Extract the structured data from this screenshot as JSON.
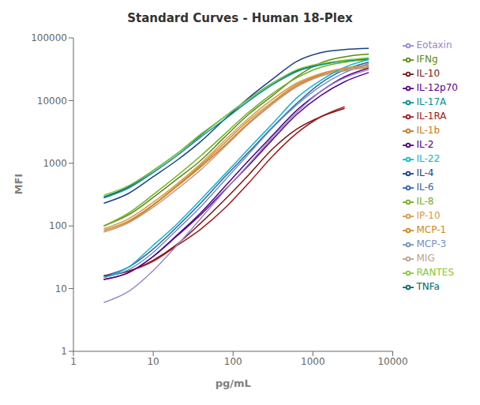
{
  "chart_data": {
    "type": "line",
    "title": "Standard Curves - Human 18-Plex",
    "x_label": "pg/mL",
    "y_label": "MFI",
    "log": true,
    "grid": false,
    "legend": "right",
    "xlim": [
      1,
      10000
    ],
    "ylim": [
      1,
      100000
    ],
    "xticks": [
      1,
      10,
      100,
      1000,
      10000
    ],
    "yticks": [
      1,
      10,
      100,
      1000,
      10000,
      100000
    ],
    "x": [
      2.4,
      4.9,
      9.8,
      19.5,
      39,
      78,
      156,
      313,
      625,
      1250,
      2500,
      5000
    ],
    "series": [
      {
        "name": "IL-4",
        "color": "#1f3f7f",
        "values": [
          230,
          330,
          600,
          1100,
          2200,
          5000,
          11000,
          22000,
          42000,
          58000,
          65000,
          68000
        ]
      },
      {
        "name": "IL-10",
        "color": "#7b1515",
        "values": [
          16,
          19,
          28,
          50,
          110,
          260,
          650,
          1700,
          3500,
          5500,
          7500,
          null
        ]
      },
      {
        "name": "IFNg",
        "color": "#5a8a10",
        "values": [
          100,
          150,
          280,
          550,
          1100,
          2600,
          6000,
          12000,
          24000,
          40000,
          50000,
          55000
        ]
      },
      {
        "name": "IL-2",
        "color": "#4b0082",
        "values": [
          14,
          18,
          32,
          70,
          160,
          420,
          1100,
          2800,
          7000,
          14000,
          24000,
          33000
        ]
      },
      {
        "name": "TNFa",
        "color": "#006868",
        "values": [
          290,
          420,
          750,
          1400,
          2800,
          5500,
          10500,
          19000,
          30000,
          38000,
          43000,
          46000
        ]
      },
      {
        "name": "IL-1b",
        "color": "#c87820",
        "values": [
          80,
          115,
          210,
          420,
          870,
          1900,
          4400,
          9000,
          17000,
          25000,
          30000,
          34000
        ]
      },
      {
        "name": "IL-6",
        "color": "#3060b0",
        "values": [
          16,
          22,
          42,
          95,
          230,
          600,
          1500,
          3800,
          9000,
          19000,
          31000,
          41000
        ]
      },
      {
        "name": "IL-1RA",
        "color": "#a01818",
        "values": [
          16,
          19,
          27,
          48,
          88,
          190,
          480,
          1300,
          3000,
          5500,
          8000,
          null
        ]
      },
      {
        "name": "IL-8",
        "color": "#70b020",
        "values": [
          100,
          160,
          310,
          620,
          1300,
          2900,
          6500,
          13000,
          23000,
          34000,
          41000,
          45000
        ]
      },
      {
        "name": "IL-12p70",
        "color": "#5b0090",
        "values": [
          14,
          18,
          32,
          68,
          150,
          370,
          920,
          2400,
          6000,
          12000,
          20000,
          28000
        ]
      },
      {
        "name": "IL-17A",
        "color": "#009090",
        "values": [
          280,
          400,
          700,
          1300,
          2600,
          5000,
          9800,
          18000,
          29000,
          37000,
          43000,
          46000
        ]
      },
      {
        "name": "MCP-1",
        "color": "#d08820",
        "values": [
          85,
          120,
          215,
          430,
          920,
          2100,
          4800,
          9500,
          18000,
          26000,
          32000,
          36000
        ]
      },
      {
        "name": "MCP-3",
        "color": "#7090c8",
        "values": [
          15,
          20,
          37,
          85,
          200,
          530,
          1400,
          3700,
          8500,
          17000,
          28000,
          39000
        ]
      },
      {
        "name": "MIG",
        "color": "#c0a090",
        "values": [
          80,
          112,
          195,
          380,
          780,
          1800,
          4200,
          8800,
          16500,
          24500,
          30500,
          34500
        ]
      },
      {
        "name": "RANTES",
        "color": "#88c838",
        "values": [
          310,
          440,
          760,
          1400,
          2900,
          5500,
          10500,
          19000,
          31000,
          39000,
          44000,
          48000
        ]
      },
      {
        "name": "Eotaxin",
        "color": "#9888c8",
        "values": [
          6,
          9,
          19,
          48,
          130,
          360,
          960,
          2600,
          6500,
          14000,
          23000,
          31000
        ]
      },
      {
        "name": "IL-22",
        "color": "#10b8c8",
        "values": [
          15,
          22,
          48,
          105,
          260,
          660,
          1700,
          4300,
          11000,
          21000,
          34000,
          45000
        ]
      },
      {
        "name": "IP-10",
        "color": "#d89848",
        "values": [
          90,
          130,
          235,
          460,
          980,
          2300,
          5200,
          10500,
          19000,
          27000,
          33000,
          37000
        ]
      }
    ]
  }
}
